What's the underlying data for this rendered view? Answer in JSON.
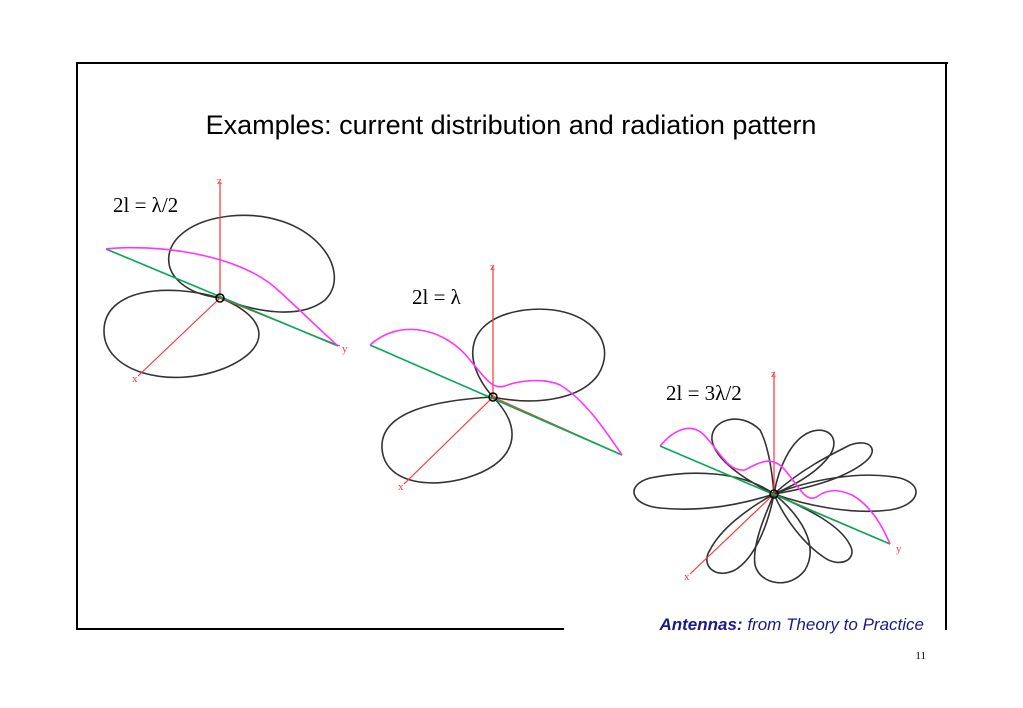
{
  "slide": {
    "title": "Examples: current distribution and radiation pattern",
    "footer": {
      "brand": "Antennas:",
      "rest": "from Theory to Practice"
    },
    "page_number": "11"
  },
  "diagrams": [
    {
      "label": "2l = λ/2"
    },
    {
      "label": "2l = λ"
    },
    {
      "label": "2l = 3λ/2"
    }
  ],
  "colors": {
    "axis": "#ff3333",
    "current": "#ff33ff",
    "pattern": "#333333",
    "dipole": "#00aa55",
    "footer_text": "#1a1a8c"
  }
}
